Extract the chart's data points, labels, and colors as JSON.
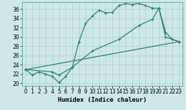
{
  "xlabel": "Humidex (Indice chaleur)",
  "ylabel": "",
  "bg_color": "#cde8e8",
  "line_color": "#2d7d6e",
  "grid_color": "#aacece",
  "xlim": [
    -0.5,
    23.5
  ],
  "ylim": [
    19.5,
    37.5
  ],
  "xticks": [
    0,
    1,
    2,
    3,
    4,
    5,
    6,
    7,
    8,
    9,
    10,
    11,
    12,
    13,
    14,
    15,
    16,
    17,
    18,
    19,
    20,
    21,
    22,
    23
  ],
  "yticks": [
    20,
    22,
    24,
    26,
    28,
    30,
    32,
    34,
    36
  ],
  "line1_x": [
    0,
    1,
    2,
    3,
    4,
    5,
    6,
    7,
    8,
    9,
    10,
    11,
    12,
    13,
    14,
    15,
    16,
    17,
    18,
    19,
    20,
    21,
    22,
    23
  ],
  "line1_y": [
    23.0,
    21.8,
    22.5,
    22.0,
    21.5,
    20.2,
    21.5,
    23.5,
    29.0,
    33.0,
    34.5,
    35.8,
    35.2,
    35.3,
    36.8,
    37.2,
    37.0,
    37.2,
    36.8,
    36.2,
    36.2,
    31.0,
    29.5,
    29.0
  ],
  "line2_x": [
    0,
    4,
    5,
    7,
    10,
    14,
    17,
    19,
    20,
    21,
    22,
    23
  ],
  "line2_y": [
    23.0,
    22.5,
    21.8,
    23.5,
    27.0,
    29.5,
    32.5,
    33.8,
    36.2,
    30.0,
    29.5,
    29.0
  ],
  "line3_x": [
    0,
    23
  ],
  "line3_y": [
    23.0,
    29.0
  ],
  "markersize": 3.0,
  "linewidth": 0.9
}
